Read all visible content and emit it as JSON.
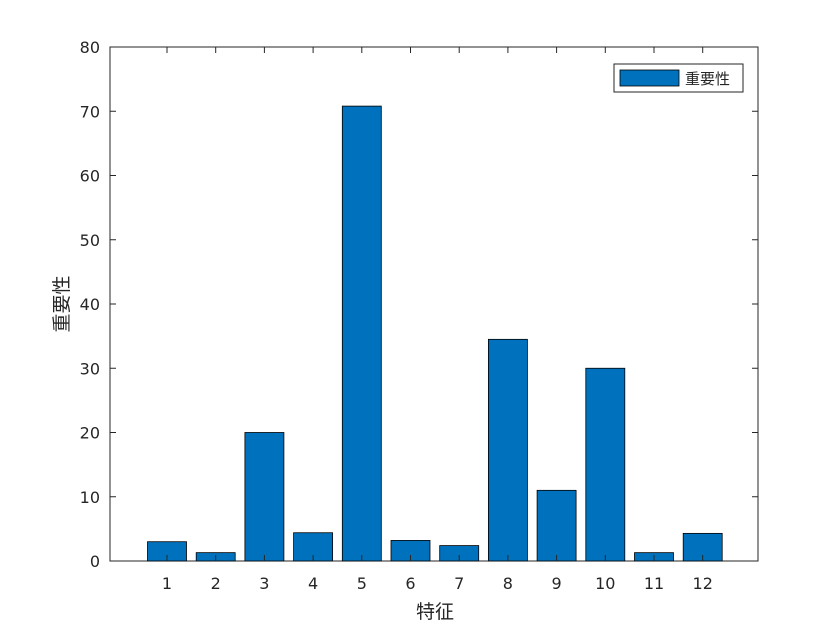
{
  "chart_data": {
    "type": "bar",
    "categories": [
      "1",
      "2",
      "3",
      "4",
      "5",
      "6",
      "7",
      "8",
      "9",
      "10",
      "11",
      "12"
    ],
    "series": [
      {
        "name": "重要性",
        "values": [
          3.0,
          1.3,
          20.0,
          4.4,
          70.8,
          3.2,
          2.4,
          34.5,
          11.0,
          30.0,
          1.3,
          4.3
        ]
      }
    ],
    "title": "",
    "xlabel": "特征",
    "ylabel": "重要性",
    "ylim": [
      0,
      80
    ],
    "yticks": [
      0,
      10,
      20,
      30,
      40,
      50,
      60,
      70,
      80
    ],
    "grid": false,
    "legend_position": "top-right",
    "colors": {
      "bar": "#0072BD",
      "bar_edge": "#000000",
      "axis": "#262626"
    }
  }
}
